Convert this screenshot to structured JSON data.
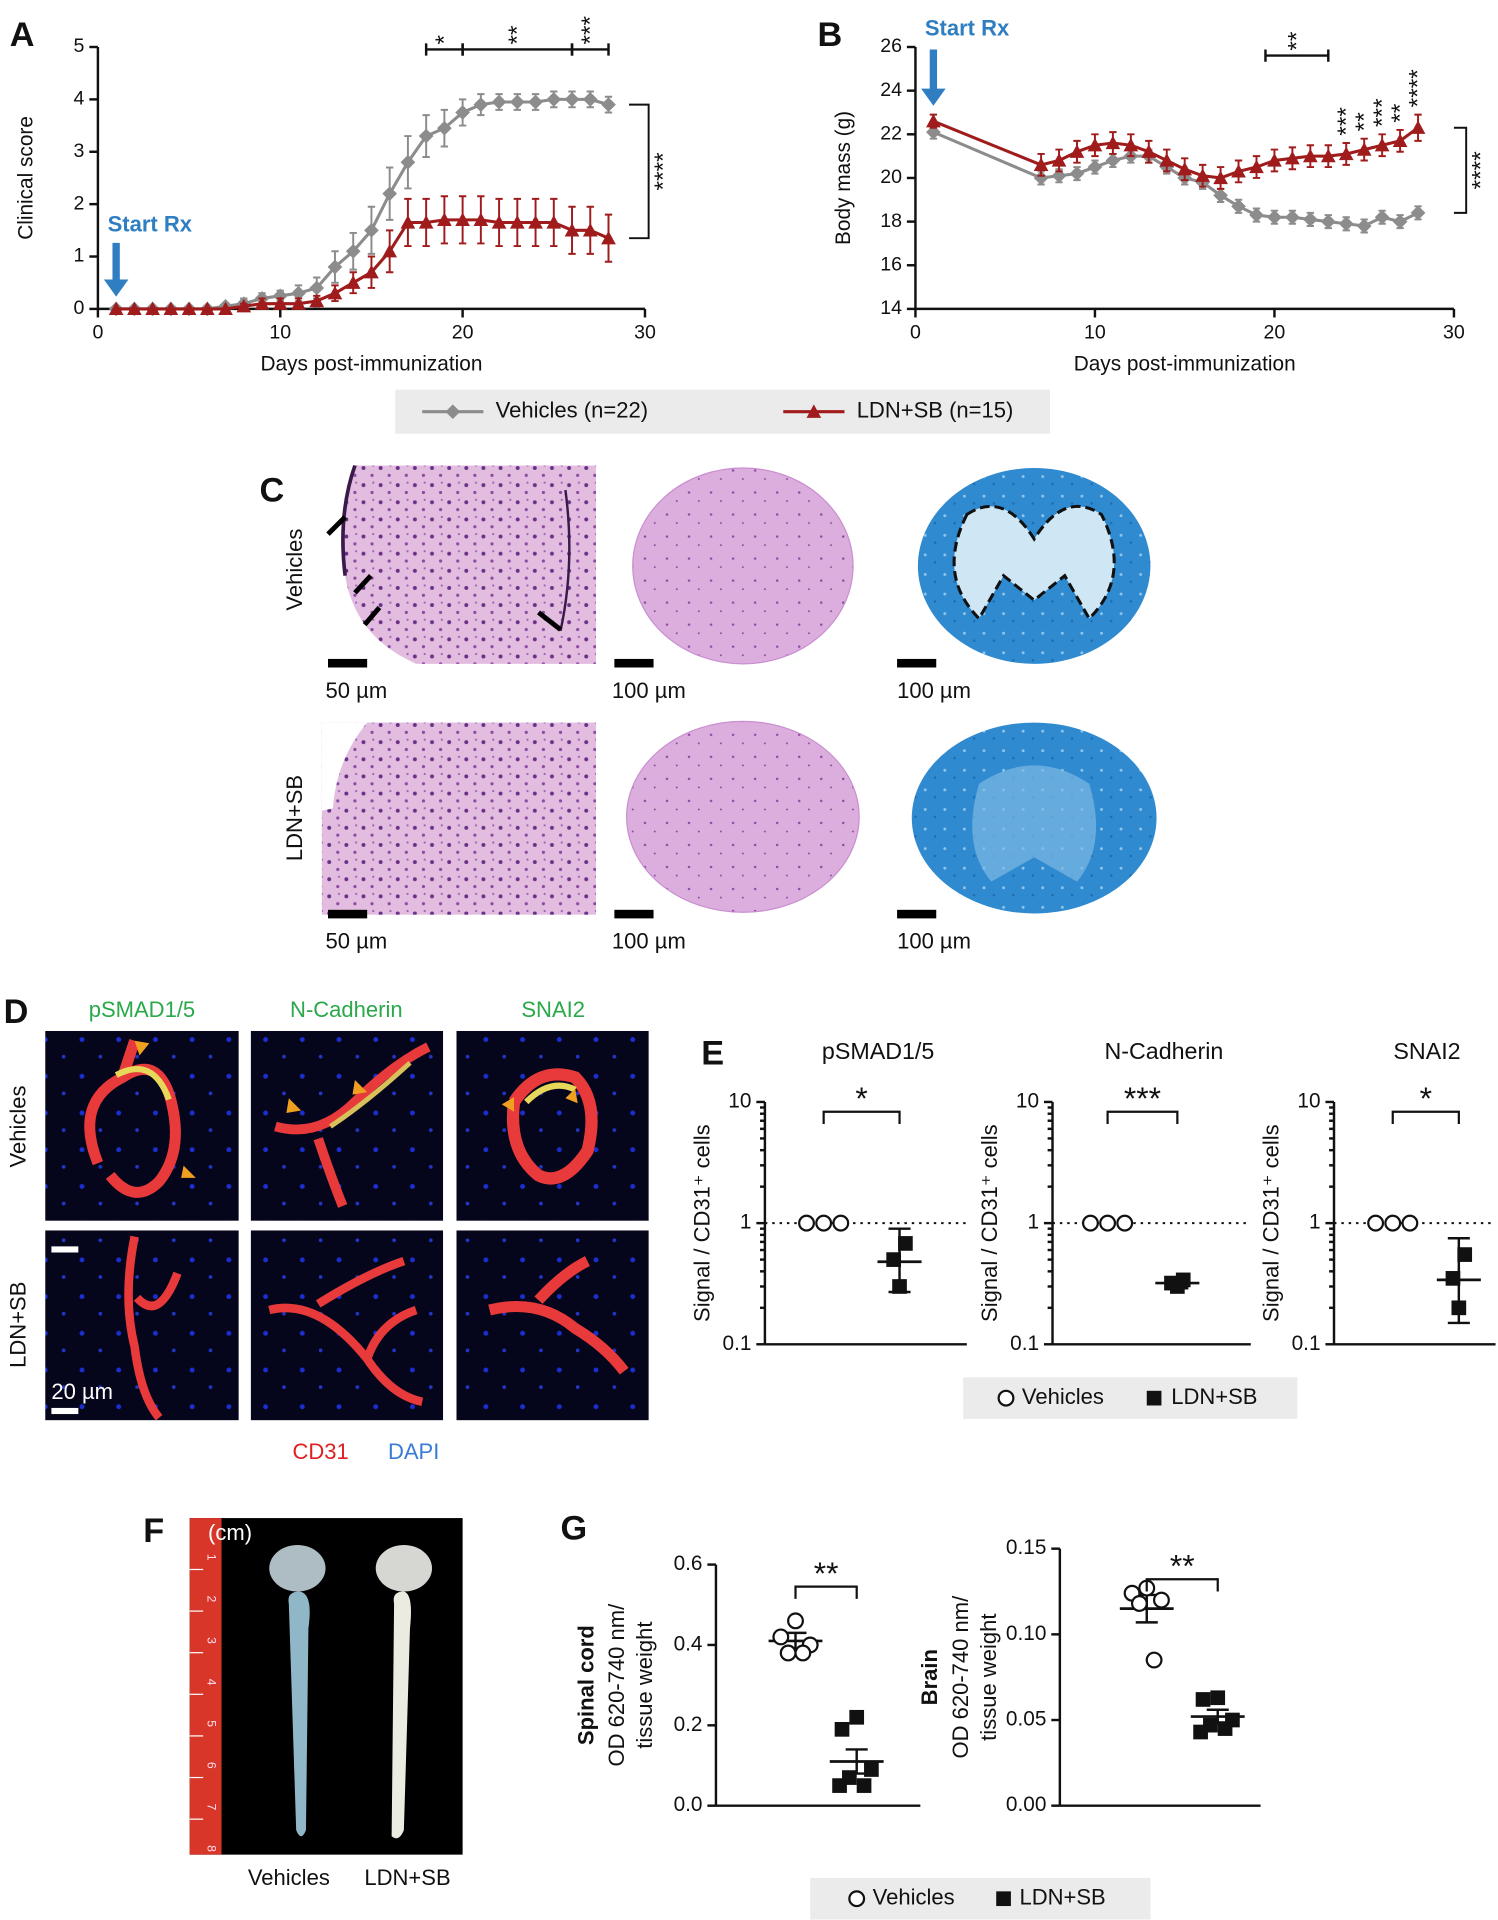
{
  "chart_data": [
    {
      "type": "line",
      "panel": "A",
      "xlabel": "Days post-immunization",
      "ylabel": "Clinical score",
      "xlim": [
        0,
        30
      ],
      "xticks": [
        0,
        10,
        20,
        30
      ],
      "ylim": [
        0,
        5
      ],
      "yticks": [
        0,
        1,
        2,
        3,
        4,
        5
      ],
      "x": [
        1,
        2,
        3,
        4,
        5,
        6,
        7,
        8,
        9,
        10,
        11,
        12,
        13,
        14,
        15,
        16,
        17,
        18,
        19,
        20,
        21,
        22,
        23,
        24,
        25,
        26,
        27,
        28
      ],
      "series": [
        {
          "name": "Vehicles (n=22)",
          "color": "#8c8c8c",
          "marker": "diamond",
          "values": [
            0,
            0,
            0,
            0,
            0,
            0,
            0.05,
            0.1,
            0.2,
            0.25,
            0.3,
            0.4,
            0.8,
            1.1,
            1.5,
            2.2,
            2.8,
            3.3,
            3.45,
            3.75,
            3.9,
            3.95,
            3.95,
            3.95,
            4.0,
            4.0,
            4.0,
            3.9
          ],
          "errors": [
            0,
            0,
            0,
            0,
            0,
            0,
            0.05,
            0.1,
            0.1,
            0.1,
            0.15,
            0.2,
            0.3,
            0.35,
            0.45,
            0.5,
            0.5,
            0.4,
            0.35,
            0.25,
            0.2,
            0.15,
            0.15,
            0.15,
            0.15,
            0.15,
            0.15,
            0.15
          ]
        },
        {
          "name": "LDN+SB (n=15)",
          "color": "#a01c1c",
          "marker": "triangle",
          "values": [
            0,
            0,
            0,
            0,
            0,
            0,
            0,
            0.05,
            0.1,
            0.1,
            0.1,
            0.15,
            0.3,
            0.5,
            0.7,
            1.1,
            1.65,
            1.65,
            1.7,
            1.7,
            1.7,
            1.65,
            1.65,
            1.65,
            1.65,
            1.5,
            1.5,
            1.35
          ],
          "errors": [
            0,
            0,
            0,
            0,
            0,
            0,
            0,
            0.05,
            0.1,
            0.1,
            0.1,
            0.1,
            0.15,
            0.2,
            0.3,
            0.4,
            0.45,
            0.45,
            0.45,
            0.45,
            0.45,
            0.45,
            0.45,
            0.45,
            0.45,
            0.45,
            0.45,
            0.45
          ]
        }
      ],
      "start": {
        "text": "Start Rx",
        "x": 1
      },
      "significance": [
        {
          "text": "*",
          "x": [
            18,
            20
          ]
        },
        {
          "text": "**",
          "x": [
            20,
            26
          ]
        },
        {
          "text": "***",
          "x": [
            26,
            28
          ]
        }
      ],
      "end_bracket": "****"
    },
    {
      "type": "line",
      "panel": "B",
      "xlabel": "Days post-immunization",
      "ylabel": "Body mass (g)",
      "xlim": [
        0,
        30
      ],
      "xticks": [
        0,
        10,
        20,
        30
      ],
      "ylim": [
        14,
        26
      ],
      "yticks": [
        14,
        16,
        18,
        20,
        22,
        24,
        26
      ],
      "x": [
        1,
        7,
        8,
        9,
        10,
        11,
        12,
        13,
        14,
        15,
        16,
        17,
        18,
        19,
        20,
        21,
        22,
        23,
        24,
        25,
        26,
        27,
        28
      ],
      "series": [
        {
          "color": "#8c8c8c",
          "marker": "diamond",
          "values": [
            22.1,
            20.0,
            20.1,
            20.2,
            20.5,
            20.8,
            21.0,
            21.0,
            20.5,
            20.0,
            19.8,
            19.2,
            18.7,
            18.3,
            18.2,
            18.2,
            18.1,
            18.0,
            17.9,
            17.8,
            18.2,
            18.0,
            18.4
          ],
          "errors": [
            0.3,
            0.3,
            0.3,
            0.3,
            0.3,
            0.3,
            0.3,
            0.3,
            0.3,
            0.3,
            0.3,
            0.3,
            0.3,
            0.3,
            0.3,
            0.3,
            0.3,
            0.3,
            0.3,
            0.3,
            0.3,
            0.3,
            0.3
          ]
        },
        {
          "color": "#a01c1c",
          "marker": "triangle",
          "values": [
            22.6,
            20.6,
            20.8,
            21.2,
            21.5,
            21.6,
            21.5,
            21.2,
            20.8,
            20.4,
            20.1,
            20.0,
            20.3,
            20.5,
            20.8,
            20.9,
            21.0,
            21.0,
            21.1,
            21.3,
            21.5,
            21.7,
            22.3
          ],
          "errors": [
            0.3,
            0.5,
            0.5,
            0.5,
            0.5,
            0.5,
            0.5,
            0.5,
            0.5,
            0.5,
            0.5,
            0.5,
            0.5,
            0.5,
            0.5,
            0.5,
            0.5,
            0.5,
            0.5,
            0.5,
            0.5,
            0.5,
            0.6
          ]
        }
      ],
      "start": {
        "text": "Start Rx",
        "x": 1
      },
      "significance": [
        {
          "text": "**",
          "x": [
            19.5,
            23
          ]
        },
        {
          "text": "***",
          "x": 24
        },
        {
          "text": "**",
          "x": 25
        },
        {
          "text": "***",
          "x": 26
        },
        {
          "text": "**",
          "x": 27
        },
        {
          "text": "****",
          "x": 28
        }
      ],
      "end_bracket": "****"
    },
    {
      "type": "dot",
      "panel": "E",
      "title": "pSMAD1/5",
      "ylabel": "Signal / CD31⁺ cells",
      "log_scale": true,
      "ylim": [
        0.1,
        10
      ],
      "yticks": [
        0.1,
        1,
        10
      ],
      "hline": 1,
      "significance": "*",
      "series": [
        {
          "name": "Vehicles",
          "marker": "open-circle",
          "values": [
            1,
            1,
            1
          ]
        },
        {
          "name": "LDN+SB",
          "marker": "square",
          "values": [
            0.3,
            0.5,
            0.68
          ],
          "mean": 0.48,
          "error_low": 0.27,
          "error_high": 0.9
        }
      ]
    },
    {
      "type": "dot",
      "title": "N-Cadherin",
      "ylabel": "Signal / CD31⁺ cells",
      "log_scale": true,
      "ylim": [
        0.1,
        10
      ],
      "yticks": [
        0.1,
        1,
        10
      ],
      "hline": 1,
      "significance": "***",
      "series": [
        {
          "marker": "open-circle",
          "values": [
            1,
            1,
            1
          ]
        },
        {
          "marker": "square",
          "values": [
            0.3,
            0.32,
            0.34
          ],
          "mean": 0.32,
          "error_low": 0.29,
          "error_high": 0.35
        }
      ]
    },
    {
      "type": "dot",
      "title": "SNAI2",
      "ylabel": "Signal / CD31⁺ cells",
      "log_scale": true,
      "ylim": [
        0.1,
        10
      ],
      "yticks": [
        0.1,
        1,
        10
      ],
      "hline": 1,
      "significance": "*",
      "series": [
        {
          "marker": "open-circle",
          "values": [
            1,
            1,
            1
          ]
        },
        {
          "marker": "square",
          "values": [
            0.2,
            0.35,
            0.55
          ],
          "mean": 0.34,
          "error_low": 0.15,
          "error_high": 0.75
        }
      ]
    },
    {
      "type": "dot",
      "panel": "G",
      "ylabel": [
        "Spinal cord",
        "OD 620-740 nm/",
        "tissue weight"
      ],
      "ylim": [
        0,
        0.6
      ],
      "yticks": [
        {
          "value": 0,
          "label": "0.0"
        },
        0.2,
        0.4,
        0.6
      ],
      "significance": "**",
      "series": [
        {
          "name": "Vehicles",
          "marker": "open-circle",
          "values": [
            0.46,
            0.42,
            0.4,
            0.38,
            0.38
          ],
          "mean": 0.41,
          "sem": 0.02
        },
        {
          "name": "LDN+SB",
          "marker": "square",
          "values": [
            0.22,
            0.19,
            0.09,
            0.07,
            0.05,
            0.05
          ],
          "mean": 0.11,
          "sem": 0.03
        }
      ]
    },
    {
      "type": "dot",
      "ylabel": [
        "Brain",
        "OD 620-740 nm/",
        "tissue weight"
      ],
      "ylim": [
        0,
        0.15
      ],
      "yticks": [
        {
          "value": 0,
          "label": "0.00"
        },
        {
          "value": 0.05,
          "label": "0.05"
        },
        {
          "value": 0.1,
          "label": "0.10"
        },
        {
          "value": 0.15,
          "label": "0.15"
        }
      ],
      "significance": "**",
      "series": [
        {
          "marker": "open-circle",
          "values": [
            0.127,
            0.124,
            0.12,
            0.118,
            0.085
          ],
          "mean": 0.115,
          "sem": 0.008
        },
        {
          "marker": "square",
          "values": [
            0.063,
            0.062,
            0.05,
            0.047,
            0.045,
            0.043
          ],
          "mean": 0.052,
          "sem": 0.004
        }
      ]
    }
  ],
  "figure": {
    "C": {
      "panel": "C",
      "rows": [
        "Vehicles",
        "LDN+SB"
      ],
      "scale_bars": [
        [
          "50 µm",
          "100 µm",
          "100 µm"
        ],
        [
          "50 µm",
          "100 µm",
          "100 µm"
        ]
      ]
    },
    "D": {
      "panel": "D",
      "columns": [
        "pSMAD1/5",
        "N-Cadherin",
        "SNAI2"
      ],
      "rows": [
        "Vehicles",
        "LDN+SB"
      ],
      "scale_bar": "20 µm",
      "stains": [
        "CD31",
        "DAPI"
      ]
    },
    "F": {
      "panel": "F",
      "unit": "(cm)",
      "ruler": [
        1,
        2,
        3,
        4,
        5,
        6,
        7,
        8
      ],
      "labels": [
        "Vehicles",
        "LDN+SB"
      ]
    }
  }
}
